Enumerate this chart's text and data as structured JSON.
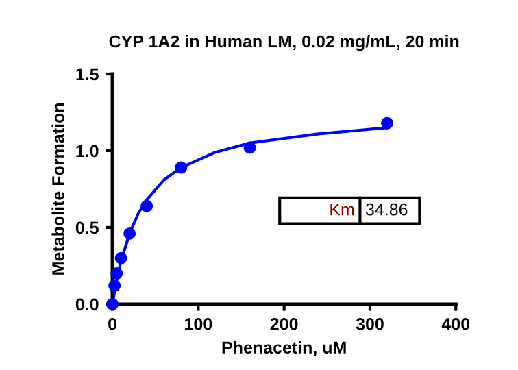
{
  "chart_data": {
    "type": "scatter",
    "title": "CYP 1A2 in Human LM, 0.02 mg/mL, 20 min",
    "xlabel": "Phenacetin, uM",
    "ylabel": "Metabolite Formation",
    "xlim": [
      0,
      400
    ],
    "xticks": [
      0,
      100,
      200,
      300,
      400
    ],
    "ylim": [
      0,
      1.5
    ],
    "yticks": [
      {
        "value": 0,
        "label": "0.0"
      },
      {
        "value": 0.5,
        "label": "0.5"
      },
      {
        "value": 1,
        "label": "1.0"
      },
      {
        "value": 1.5,
        "label": "1.5"
      }
    ],
    "grid": false,
    "legend": false,
    "series": [
      {
        "marker": "circle",
        "color": "#0000ff",
        "x": [
          0,
          2.5,
          5,
          10,
          20,
          40,
          80,
          160,
          320
        ],
        "values": [
          0,
          0.12,
          0.2,
          0.3,
          0.46,
          0.64,
          0.89,
          1.02,
          1.18
        ]
      },
      {
        "type": "line",
        "marker": "none",
        "color": "#0000ff",
        "line_style": "solid",
        "x": [
          0,
          5,
          10,
          20,
          30,
          40,
          60,
          80,
          120,
          160,
          240,
          320
        ],
        "values": [
          0,
          0.16,
          0.28,
          0.46,
          0.59,
          0.68,
          0.81,
          0.89,
          0.99,
          1.05,
          1.11,
          1.15
        ]
      }
    ],
    "annotations": [
      "Km",
      "34.86"
    ]
  }
}
